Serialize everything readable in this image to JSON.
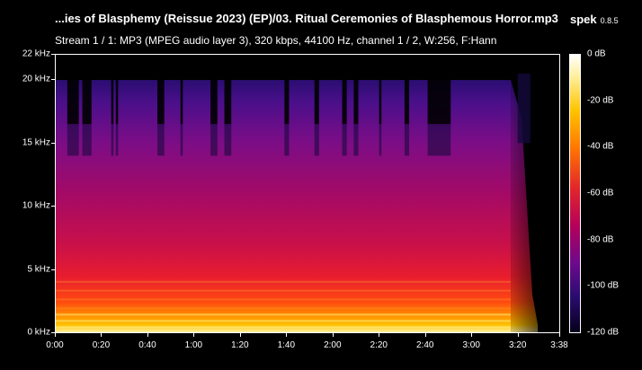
{
  "header": {
    "file_title": "...ies of Blasphemy (Reissue 2023) (EP)/03. Ritual Ceremonies of Blasphemous Horror.mp3",
    "app_name": "spek",
    "app_version": "0.8.5",
    "stream_info": "Stream 1 / 1: MP3 (MPEG audio layer 3), 320 kbps, 44100 Hz, channel 1 / 2, W:256, F:Hann"
  },
  "chart_data": {
    "type": "heatmap",
    "yticks": [
      "22 kHz",
      "20 kHz",
      "15 kHz",
      "10 kHz",
      "5 kHz",
      "0 kHz"
    ],
    "ytick_values_khz": [
      22,
      20,
      15,
      10,
      5,
      0
    ],
    "xticks": [
      "0:00",
      "0:20",
      "0:40",
      "1:00",
      "1:20",
      "1:40",
      "2:00",
      "2:20",
      "2:40",
      "3:00",
      "3:20",
      "3:38"
    ],
    "xtick_values_s": [
      0,
      20,
      40,
      60,
      80,
      100,
      120,
      140,
      160,
      180,
      200,
      218
    ],
    "colorbar_ticks": [
      "0 dB",
      "-20 dB",
      "-40 dB",
      "-60 dB",
      "-80 dB",
      "-100 dB",
      "-120 dB"
    ],
    "colorbar_values_db": [
      0,
      -20,
      -40,
      -60,
      -80,
      -100,
      -120
    ],
    "ylim_khz": [
      0,
      22
    ],
    "xlim_s": [
      0,
      218
    ],
    "cutoff_khz": 20,
    "cutoff_gaps_s": [
      [
        5,
        10
      ],
      [
        11.5,
        15.5
      ],
      [
        24,
        25
      ],
      [
        26,
        27
      ],
      [
        44,
        47
      ],
      [
        54,
        55
      ],
      [
        67,
        70
      ],
      [
        73,
        76
      ],
      [
        99,
        101
      ],
      [
        112,
        114
      ],
      [
        124,
        126
      ],
      [
        129,
        131
      ],
      [
        140,
        141
      ],
      [
        151,
        153
      ],
      [
        161,
        171
      ]
    ],
    "fade_start_s": 197,
    "end_s": 218
  }
}
